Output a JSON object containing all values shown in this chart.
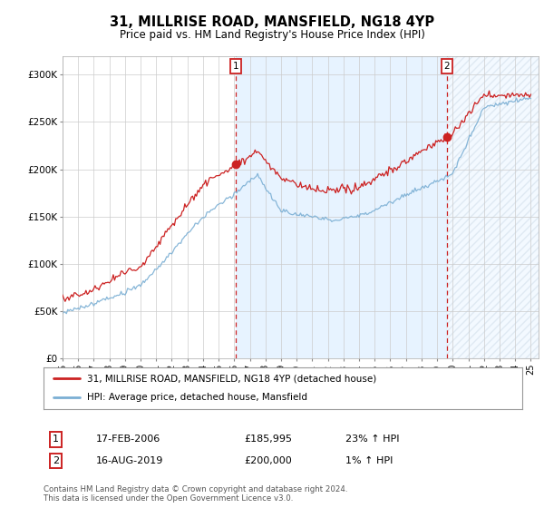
{
  "title": "31, MILLRISE ROAD, MANSFIELD, NG18 4YP",
  "subtitle": "Price paid vs. HM Land Registry's House Price Index (HPI)",
  "ylabel_ticks": [
    "£0",
    "£50K",
    "£100K",
    "£150K",
    "£200K",
    "£250K",
    "£300K"
  ],
  "ytick_vals": [
    0,
    50000,
    100000,
    150000,
    200000,
    250000,
    300000
  ],
  "ylim": [
    0,
    320000
  ],
  "xlim_start": 1995.0,
  "xlim_end": 2025.5,
  "hpi_color": "#7bafd4",
  "price_color": "#cc2222",
  "shade_color": "#ddeeff",
  "marker1_date": 2006.12,
  "marker1_price": 185995,
  "marker2_date": 2019.62,
  "marker2_price": 200000,
  "legend_line1": "31, MILLRISE ROAD, MANSFIELD, NG18 4YP (detached house)",
  "legend_line2": "HPI: Average price, detached house, Mansfield",
  "table_row1_num": "1",
  "table_row1_date": "17-FEB-2006",
  "table_row1_price": "£185,995",
  "table_row1_hpi": "23% ↑ HPI",
  "table_row2_num": "2",
  "table_row2_date": "16-AUG-2019",
  "table_row2_price": "£200,000",
  "table_row2_hpi": "1% ↑ HPI",
  "footnote": "Contains HM Land Registry data © Crown copyright and database right 2024.\nThis data is licensed under the Open Government Licence v3.0.",
  "background_color": "#ffffff",
  "grid_color": "#cccccc"
}
